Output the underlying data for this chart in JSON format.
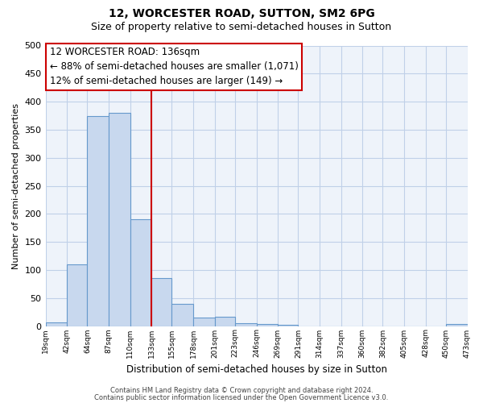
{
  "title": "12, WORCESTER ROAD, SUTTON, SM2 6PG",
  "subtitle": "Size of property relative to semi-detached houses in Sutton",
  "xlabel": "Distribution of semi-detached houses by size in Sutton",
  "ylabel": "Number of semi-detached properties",
  "bar_left_edges": [
    19,
    42,
    64,
    87,
    110,
    133,
    155,
    178,
    201,
    223,
    246,
    269,
    291,
    314,
    337,
    360,
    382,
    405,
    428,
    450
  ],
  "bar_right_edges": [
    42,
    64,
    87,
    110,
    133,
    155,
    178,
    201,
    223,
    246,
    269,
    291,
    314,
    337,
    360,
    382,
    405,
    428,
    450,
    473
  ],
  "bar_heights": [
    7,
    110,
    375,
    380,
    190,
    85,
    40,
    15,
    16,
    5,
    3,
    2,
    0,
    0,
    0,
    0,
    0,
    0,
    0,
    4
  ],
  "bar_color": "#c8d8ee",
  "bar_edge_color": "#6699cc",
  "property_line_x": 133,
  "property_line_color": "#cc0000",
  "annotation_text_line1": "12 WORCESTER ROAD: 136sqm",
  "annotation_text_line2": "← 88% of semi-detached houses are smaller (1,071)",
  "annotation_text_line3": "12% of semi-detached houses are larger (149) →",
  "ylim": [
    0,
    500
  ],
  "xlim": [
    19,
    473
  ],
  "tick_positions": [
    19,
    42,
    64,
    87,
    110,
    133,
    155,
    178,
    201,
    223,
    246,
    269,
    291,
    314,
    337,
    360,
    382,
    405,
    428,
    450,
    473
  ],
  "tick_labels": [
    "19sqm",
    "42sqm",
    "64sqm",
    "87sqm",
    "110sqm",
    "133sqm",
    "155sqm",
    "178sqm",
    "201sqm",
    "223sqm",
    "246sqm",
    "269sqm",
    "291sqm",
    "314sqm",
    "337sqm",
    "360sqm",
    "382sqm",
    "405sqm",
    "428sqm",
    "450sqm",
    "473sqm"
  ],
  "footer_line1": "Contains HM Land Registry data © Crown copyright and database right 2024.",
  "footer_line2": "Contains public sector information licensed under the Open Government Licence v3.0.",
  "bg_color": "#ffffff",
  "plot_bg_color": "#eef3fa",
  "grid_color": "#c0d0e8",
  "title_fontsize": 10,
  "subtitle_fontsize": 9,
  "annotation_fontsize": 8.5,
  "ytick_interval": 50
}
